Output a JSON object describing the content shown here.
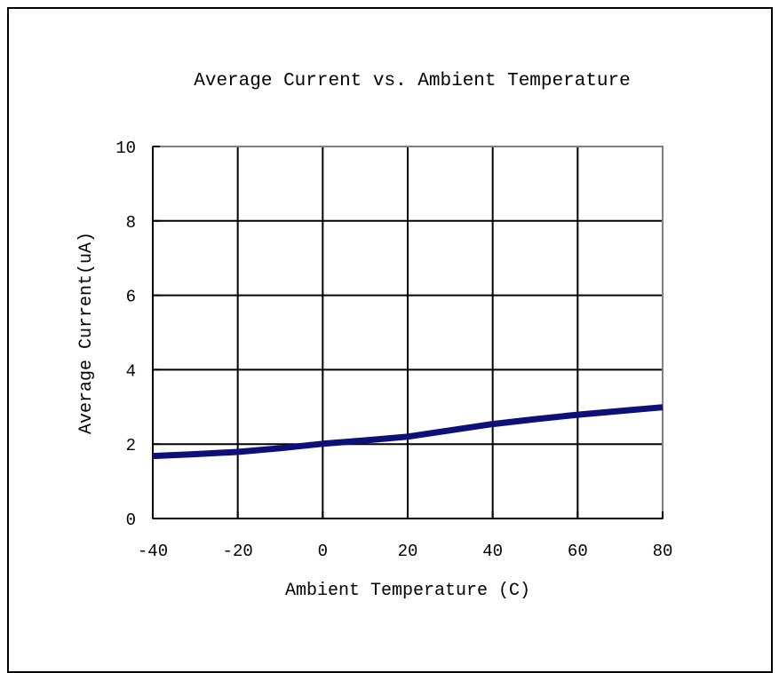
{
  "chart_data": {
    "type": "line",
    "title": "Average Current vs. Ambient Temperature",
    "xlabel": "Ambient Temperature (C)",
    "ylabel": "Average Current(uA)",
    "xlim": [
      -40,
      80
    ],
    "ylim": [
      0,
      10
    ],
    "x_ticks": [
      -40,
      -20,
      0,
      20,
      40,
      60,
      80
    ],
    "y_ticks": [
      0,
      2,
      4,
      6,
      8,
      10
    ],
    "x_tick_labels": [
      "-40",
      "-20",
      "0",
      "20",
      "40",
      "60",
      "80"
    ],
    "y_tick_labels": [
      "0",
      "2",
      "4",
      "6",
      "8",
      "10"
    ],
    "grid": true,
    "series": [
      {
        "color": "#0f0f7a",
        "x": [
          -40,
          -30,
          -20,
          -10,
          0,
          10,
          20,
          30,
          40,
          50,
          60,
          70,
          80
        ],
        "y": [
          1.68,
          1.73,
          1.79,
          1.89,
          2.01,
          2.1,
          2.2,
          2.37,
          2.54,
          2.67,
          2.79,
          2.89,
          2.99
        ]
      }
    ],
    "colors": {
      "grid": "#000000",
      "plot_border": "#808080",
      "axis": "#000000"
    }
  }
}
